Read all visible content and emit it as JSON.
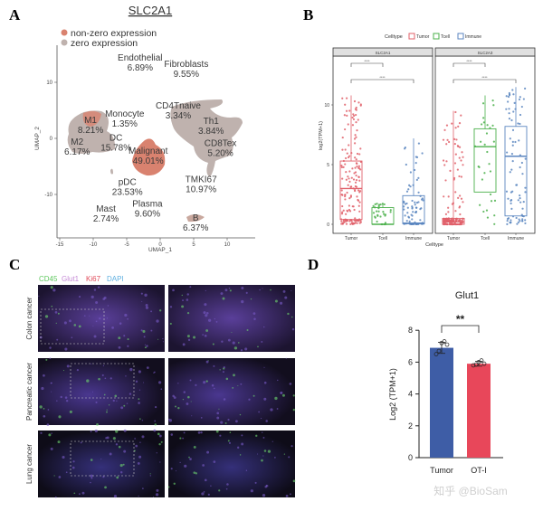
{
  "panels": {
    "a": "A",
    "b": "B",
    "c": "C",
    "d": "D"
  },
  "watermark": "知乎 @BioSam",
  "chart_data": [
    {
      "type": "scatter",
      "title": "SLC2A1",
      "xlabel": "UMAP_1",
      "ylabel": "UMAP_2",
      "xlim": [
        -15,
        12
      ],
      "ylim": [
        -17,
        17
      ],
      "xticks": [
        "-15",
        "-10",
        "-5",
        "0",
        "5",
        "10"
      ],
      "yticks": [
        "10",
        "0",
        "-10"
      ],
      "legend": [
        "non-zero expression",
        "zero expression"
      ],
      "legend_placement": "top-left",
      "colors": {
        "non_zero": "#d9826f",
        "zero": "#bfb2ae"
      },
      "clusters": [
        {
          "name": "Endothelial",
          "pct": "6.89%",
          "x": -3,
          "y": 13.7
        },
        {
          "name": "Fibroblasts",
          "pct": "9.55%",
          "x": 3.9,
          "y": 12.6
        },
        {
          "name": "CD4Tnaive",
          "pct": "3.34%",
          "x": 2.7,
          "y": 5.2
        },
        {
          "name": "Th1",
          "pct": "3.84%",
          "x": 7.6,
          "y": 2.4
        },
        {
          "name": "CD8Tex",
          "pct": "5.20%",
          "x": 9.0,
          "y": -1.5
        },
        {
          "name": "TMKI67",
          "pct": "10.97%",
          "x": 6.1,
          "y": -8.0
        },
        {
          "name": "B",
          "pct": "6.37%",
          "x": 5.3,
          "y": -14.8
        },
        {
          "name": "Plasma",
          "pct": "9.60%",
          "x": -1.9,
          "y": -12.3
        },
        {
          "name": "Mast",
          "pct": "2.74%",
          "x": -8.1,
          "y": -13.2
        },
        {
          "name": "pDC",
          "pct": "23.53%",
          "x": -4.9,
          "y": -8.5
        },
        {
          "name": "Malignant",
          "pct": "49.01%",
          "x": -1.8,
          "y": -2.9
        },
        {
          "name": "DC",
          "pct": "15.78%",
          "x": -6.6,
          "y": -0.6
        },
        {
          "name": "Monocyte",
          "pct": "1.35%",
          "x": -5.3,
          "y": 3.7
        },
        {
          "name": "M1",
          "pct": "8.21%",
          "x": -10.4,
          "y": 2.6
        },
        {
          "name": "M2",
          "pct": "6.17%",
          "x": -12.4,
          "y": -1.3
        }
      ]
    },
    {
      "type": "box",
      "legend_title": "Celltype",
      "legend": [
        "Tumor",
        "Tcell",
        "Immune"
      ],
      "legend_placement": "top",
      "colors": {
        "Tumor": "#e0606a",
        "Tcell": "#4bb04b",
        "Immune": "#5b86c0"
      },
      "xlabel": "Celltype",
      "ylabel": "log2(TPM+1)",
      "ylim": [
        -0.5,
        14
      ],
      "yticks": [
        "0",
        "5",
        "10"
      ],
      "categories": [
        "Tumor",
        "Tcell",
        "Immune"
      ],
      "significance": "****",
      "facets": [
        {
          "name": "SLC2A1",
          "boxes": [
            {
              "q1": 0.4,
              "median": 3.0,
              "q3": 5.3,
              "min": 0,
              "max": 10.8
            },
            {
              "q1": 0,
              "median": 0,
              "q3": 1.4,
              "min": 0,
              "max": 1.8
            },
            {
              "q1": 0.05,
              "median": 0.1,
              "q3": 2.4,
              "min": 0,
              "max": 7.2
            }
          ]
        },
        {
          "name": "SLC2A3",
          "boxes": [
            {
              "q1": 0,
              "median": 0.2,
              "q3": 0.5,
              "min": 0,
              "max": 9.5
            },
            {
              "q1": 2.7,
              "median": 6.5,
              "q3": 8.0,
              "min": 0,
              "max": 10.8
            },
            {
              "q1": 0.7,
              "median": 5.7,
              "q3": 8.2,
              "min": 0,
              "max": 11.5
            }
          ]
        }
      ]
    },
    {
      "type": "bar",
      "title": "Glut1",
      "ylabel": "Log2 (TPM+1)",
      "ylim": [
        0,
        8
      ],
      "yticks": [
        "0",
        "2",
        "4",
        "6",
        "8"
      ],
      "categories": [
        "Tumor",
        "OT-I"
      ],
      "values": [
        6.9,
        5.9
      ],
      "sd": [
        0.35,
        0.15
      ],
      "points": [
        [
          6.5,
          6.7,
          7.2,
          7.3,
          7.1
        ],
        [
          5.8,
          5.85,
          6.0,
          6.1,
          5.9
        ]
      ],
      "colors": [
        "#3e5da6",
        "#e8475a"
      ],
      "significance": "**"
    }
  ],
  "panel_c": {
    "legend": [
      {
        "label": "CD45",
        "color": "#5fc85f"
      },
      {
        "label": "Glut1",
        "color": "#c58ad6"
      },
      {
        "label": "Ki67",
        "color": "#e04a5a"
      },
      {
        "label": "DAPI",
        "color": "#5fb0e0"
      }
    ],
    "rows": [
      "Colon cancer",
      "Pancreatic cancer",
      "Lung cancer"
    ]
  }
}
